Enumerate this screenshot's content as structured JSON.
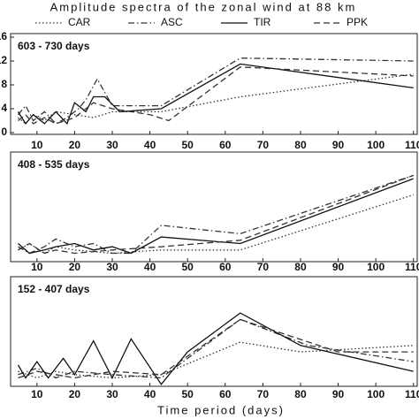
{
  "title": "Amplitude spectra of the zonal wind at 88 km",
  "xlabel": "Time period (days)",
  "chart_data": [
    {
      "type": "line",
      "title": "603 - 730 days",
      "xlim": [
        3,
        111
      ],
      "ylim": [
        -0.3,
        16.6
      ],
      "xticks": [
        10,
        20,
        30,
        40,
        50,
        60,
        70,
        80,
        90,
        100,
        110
      ],
      "yticks": [
        0,
        4,
        8,
        12,
        16
      ],
      "series": [
        {
          "name": "CAR",
          "color": "#333",
          "dash": "dotted",
          "x": [
            5,
            7,
            9,
            12,
            15,
            20,
            25,
            30,
            43,
            64,
            110
          ],
          "values": [
            2.5,
            1.5,
            3,
            2,
            3.5,
            3,
            2.5,
            3.5,
            3.5,
            6,
            9.8
          ]
        },
        {
          "name": "ASC",
          "color": "#333",
          "dash": "dashdot",
          "x": [
            5,
            7,
            9,
            12,
            15,
            18,
            21,
            23,
            26,
            30,
            43,
            64,
            110
          ],
          "values": [
            3,
            4.5,
            2,
            3.5,
            1.5,
            2.5,
            4,
            5.5,
            9,
            4.5,
            4.5,
            12.5,
            12
          ]
        },
        {
          "name": "TIR",
          "color": "#111",
          "dash": "solid",
          "x": [
            5,
            7,
            9,
            12,
            15,
            18,
            20,
            23,
            25,
            28,
            32,
            43,
            64,
            110
          ],
          "values": [
            3.5,
            1.5,
            3,
            1.5,
            3.5,
            1.5,
            5,
            3.5,
            6,
            6,
            3.5,
            4,
            11.5,
            7.5
          ]
        },
        {
          "name": "PPK",
          "color": "#333",
          "dash": "dashed",
          "x": [
            5,
            7,
            9,
            12,
            15,
            20,
            25,
            30,
            40,
            45,
            64,
            110
          ],
          "values": [
            2,
            3,
            1.5,
            2.5,
            1.5,
            2.5,
            5,
            4,
            3,
            2,
            11,
            9.5
          ]
        }
      ]
    },
    {
      "type": "line",
      "title": "408 - 535 days",
      "xlim": [
        3,
        111
      ],
      "ylim": [
        -0.3,
        16.6
      ],
      "xticks": [
        10,
        20,
        30,
        40,
        50,
        60,
        70,
        80,
        90,
        100,
        110
      ],
      "series": [
        {
          "name": "CAR",
          "color": "#333",
          "dash": "dotted",
          "x": [
            5,
            8,
            12,
            15,
            20,
            30,
            43,
            64,
            110
          ],
          "values": [
            1.5,
            2.5,
            1,
            2,
            1.5,
            1,
            1.5,
            1.5,
            10
          ]
        },
        {
          "name": "ASC",
          "color": "#333",
          "dash": "dashdot",
          "x": [
            5,
            8,
            12,
            15,
            20,
            25,
            30,
            35,
            43,
            64,
            110
          ],
          "values": [
            2,
            1,
            2,
            3.2,
            2,
            2.5,
            1,
            1,
            5.3,
            4,
            13
          ]
        },
        {
          "name": "TIR",
          "color": "#111",
          "dash": "solid",
          "x": [
            5,
            8,
            12,
            15,
            20,
            25,
            30,
            35,
            43,
            64,
            110
          ],
          "values": [
            2.5,
            1,
            1.5,
            2,
            2.5,
            1.5,
            2,
            1,
            3.5,
            2.5,
            12.5
          ]
        },
        {
          "name": "PPK",
          "color": "#333",
          "dash": "dashed",
          "x": [
            5,
            8,
            12,
            15,
            20,
            30,
            43,
            64,
            110
          ],
          "values": [
            1.5,
            2.5,
            1,
            1.5,
            1,
            1.5,
            2,
            3,
            13
          ]
        }
      ]
    },
    {
      "type": "line",
      "title": "152 - 407 days",
      "xlim": [
        3,
        111
      ],
      "ylim": [
        -0.3,
        16.6
      ],
      "xticks": [
        10,
        20,
        30,
        40,
        50,
        60,
        70,
        80,
        90,
        100,
        110
      ],
      "series": [
        {
          "name": "CAR",
          "color": "#333",
          "dash": "dotted",
          "x": [
            5,
            10,
            15,
            20,
            30,
            43,
            64,
            80,
            110
          ],
          "values": [
            2,
            1,
            2,
            1.5,
            1,
            1.5,
            6.5,
            5,
            6
          ]
        },
        {
          "name": "ASC",
          "color": "#333",
          "dash": "dashdot",
          "x": [
            5,
            10,
            15,
            20,
            30,
            43,
            64,
            82,
            110
          ],
          "values": [
            1.5,
            2.5,
            1,
            2,
            1.5,
            1,
            10,
            6,
            3.5
          ]
        },
        {
          "name": "TIR",
          "color": "#111",
          "dash": "solid",
          "x": [
            5,
            7,
            10,
            13,
            17,
            20,
            25,
            30,
            35,
            43,
            50,
            64,
            80,
            110
          ],
          "values": [
            3,
            1,
            3.5,
            1,
            4,
            1.5,
            6.7,
            1,
            7,
            0,
            5,
            11,
            6,
            2
          ]
        },
        {
          "name": "PPK",
          "color": "#333",
          "dash": "dashed",
          "x": [
            5,
            10,
            15,
            20,
            30,
            43,
            64,
            90,
            110
          ],
          "values": [
            1,
            2,
            1.5,
            1,
            2,
            1.5,
            10,
            5,
            5
          ]
        }
      ]
    }
  ]
}
